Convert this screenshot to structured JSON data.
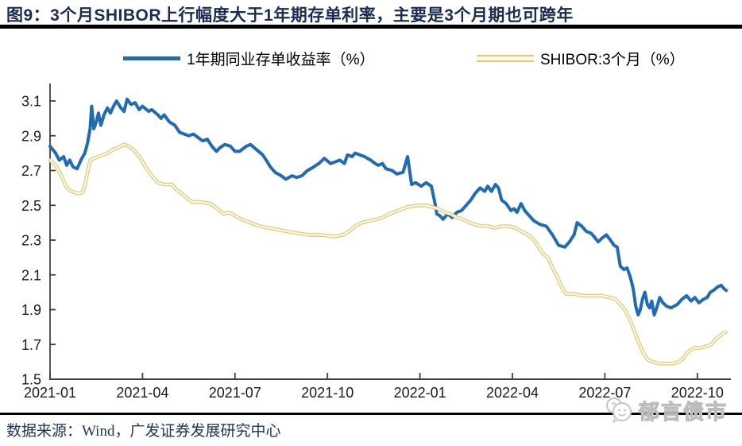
{
  "figure": {
    "title": "图9：3个月SHIBOR上行幅度大于1年期存单利率，主要是3个月期也可跨年",
    "source": "数据来源：Wind，广发证券发展研究中心",
    "watermark": "郁言债市"
  },
  "colors": {
    "ncd_line": "#1f6cb4",
    "shibor_edge": "#dfc878",
    "shibor_fill": "#fcf8e6",
    "title_text": "#1a2c55",
    "source_text": "#20345c",
    "rule": "#000000",
    "axis": "#3f3f3f",
    "tick_label": "#1a1a1a",
    "watermark": "#bdbdbd"
  },
  "chart_data": {
    "type": "line",
    "title": "图9：3个月SHIBOR上行幅度大于1年期存单利率，主要是3个月期也可跨年",
    "xlabel": "",
    "ylabel": "",
    "x_unit": "months since 2021-01",
    "ylim": [
      1.5,
      3.1
    ],
    "grid": false,
    "legend_position": "top-center",
    "yticks": [
      3.1,
      2.9,
      2.7,
      2.5,
      2.3,
      2.1,
      1.9,
      1.7,
      1.5
    ],
    "xticks": [
      {
        "m": 0,
        "label": "2021-01"
      },
      {
        "m": 3,
        "label": "2021-04"
      },
      {
        "m": 6,
        "label": "2021-07"
      },
      {
        "m": 9,
        "label": "2021-10"
      },
      {
        "m": 12,
        "label": "2022-01"
      },
      {
        "m": 15,
        "label": "2022-04"
      },
      {
        "m": 18,
        "label": "2022-07"
      },
      {
        "m": 21,
        "label": "2022-10"
      }
    ],
    "series": [
      {
        "name": "1年期同业存单收益率（%）",
        "color": "#1f6cb4",
        "style": "solid",
        "points": [
          [
            0,
            2.84
          ],
          [
            0.18,
            2.8
          ],
          [
            0.3,
            2.76
          ],
          [
            0.44,
            2.78
          ],
          [
            0.54,
            2.73
          ],
          [
            0.64,
            2.76
          ],
          [
            0.75,
            2.72
          ],
          [
            0.88,
            2.71
          ],
          [
            1,
            2.76
          ],
          [
            1.13,
            2.8
          ],
          [
            1.22,
            2.86
          ],
          [
            1.3,
            2.94
          ],
          [
            1.35,
            3.07
          ],
          [
            1.42,
            2.94
          ],
          [
            1.5,
            2.98
          ],
          [
            1.57,
            3.03
          ],
          [
            1.65,
            2.96
          ],
          [
            1.75,
            3.02
          ],
          [
            1.86,
            3.06
          ],
          [
            1.96,
            3.03
          ],
          [
            2.06,
            3.07
          ],
          [
            2.16,
            3.1
          ],
          [
            2.3,
            3.06
          ],
          [
            2.4,
            3.04
          ],
          [
            2.5,
            3.11
          ],
          [
            2.63,
            3.08
          ],
          [
            2.76,
            3.09
          ],
          [
            2.89,
            3.05
          ],
          [
            3,
            3.07
          ],
          [
            3.2,
            3.04
          ],
          [
            3.3,
            3.05
          ],
          [
            3.5,
            3.02
          ],
          [
            3.6,
            3.0
          ],
          [
            3.7,
            3.02
          ],
          [
            3.87,
            2.98
          ],
          [
            4.05,
            2.96
          ],
          [
            4.2,
            2.92
          ],
          [
            4.35,
            2.91
          ],
          [
            4.5,
            2.9
          ],
          [
            4.65,
            2.91
          ],
          [
            4.8,
            2.89
          ],
          [
            4.95,
            2.87
          ],
          [
            5.1,
            2.88
          ],
          [
            5.25,
            2.84
          ],
          [
            5.4,
            2.81
          ],
          [
            5.5,
            2.83
          ],
          [
            5.67,
            2.85
          ],
          [
            5.85,
            2.84
          ],
          [
            6,
            2.81
          ],
          [
            6.15,
            2.81
          ],
          [
            6.37,
            2.84
          ],
          [
            6.5,
            2.85
          ],
          [
            6.7,
            2.82
          ],
          [
            6.9,
            2.79
          ],
          [
            7.05,
            2.75
          ],
          [
            7.15,
            2.72
          ],
          [
            7.3,
            2.69
          ],
          [
            7.5,
            2.67
          ],
          [
            7.65,
            2.65
          ],
          [
            7.85,
            2.67
          ],
          [
            8,
            2.66
          ],
          [
            8.17,
            2.67
          ],
          [
            8.35,
            2.7
          ],
          [
            8.55,
            2.72
          ],
          [
            8.72,
            2.74
          ],
          [
            8.9,
            2.77
          ],
          [
            9.1,
            2.74
          ],
          [
            9.25,
            2.75
          ],
          [
            9.4,
            2.76
          ],
          [
            9.55,
            2.74
          ],
          [
            9.65,
            2.79
          ],
          [
            9.8,
            2.78
          ],
          [
            9.9,
            2.8
          ],
          [
            10.05,
            2.79
          ],
          [
            10.2,
            2.78
          ],
          [
            10.4,
            2.76
          ],
          [
            10.55,
            2.74
          ],
          [
            10.65,
            2.73
          ],
          [
            10.78,
            2.74
          ],
          [
            10.9,
            2.71
          ],
          [
            11.1,
            2.7
          ],
          [
            11.25,
            2.68
          ],
          [
            11.45,
            2.69
          ],
          [
            11.6,
            2.78
          ],
          [
            11.73,
            2.62
          ],
          [
            11.86,
            2.63
          ],
          [
            12.04,
            2.61
          ],
          [
            12.2,
            2.63
          ],
          [
            12.37,
            2.61
          ],
          [
            12.48,
            2.52
          ],
          [
            12.55,
            2.45
          ],
          [
            12.65,
            2.44
          ],
          [
            12.75,
            2.42
          ],
          [
            12.9,
            2.45
          ],
          [
            13.05,
            2.43
          ],
          [
            13.2,
            2.46
          ],
          [
            13.35,
            2.47
          ],
          [
            13.5,
            2.5
          ],
          [
            13.65,
            2.53
          ],
          [
            13.8,
            2.57
          ],
          [
            13.95,
            2.6
          ],
          [
            14.1,
            2.58
          ],
          [
            14.2,
            2.61
          ],
          [
            14.32,
            2.58
          ],
          [
            14.45,
            2.62
          ],
          [
            14.55,
            2.6
          ],
          [
            14.65,
            2.53
          ],
          [
            14.8,
            2.51
          ],
          [
            14.95,
            2.47
          ],
          [
            15.05,
            2.48
          ],
          [
            15.15,
            2.46
          ],
          [
            15.28,
            2.51
          ],
          [
            15.4,
            2.47
          ],
          [
            15.55,
            2.44
          ],
          [
            15.7,
            2.41
          ],
          [
            15.9,
            2.39
          ],
          [
            16.1,
            2.38
          ],
          [
            16.3,
            2.33
          ],
          [
            16.5,
            2.27
          ],
          [
            16.7,
            2.26
          ],
          [
            16.85,
            2.29
          ],
          [
            17,
            2.33
          ],
          [
            17.1,
            2.4
          ],
          [
            17.25,
            2.38
          ],
          [
            17.4,
            2.35
          ],
          [
            17.55,
            2.34
          ],
          [
            17.65,
            2.32
          ],
          [
            17.78,
            2.29
          ],
          [
            17.9,
            2.31
          ],
          [
            18.05,
            2.33
          ],
          [
            18.18,
            2.3
          ],
          [
            18.3,
            2.27
          ],
          [
            18.4,
            2.26
          ],
          [
            18.5,
            2.15
          ],
          [
            18.62,
            2.13
          ],
          [
            18.72,
            2.14
          ],
          [
            18.82,
            2.09
          ],
          [
            18.92,
            2.02
          ],
          [
            19,
            1.92
          ],
          [
            19.08,
            1.87
          ],
          [
            19.15,
            1.9
          ],
          [
            19.22,
            1.96
          ],
          [
            19.3,
            2.0
          ],
          [
            19.38,
            1.93
          ],
          [
            19.45,
            1.91
          ],
          [
            19.52,
            1.95
          ],
          [
            19.6,
            1.87
          ],
          [
            19.68,
            1.91
          ],
          [
            19.78,
            1.97
          ],
          [
            19.88,
            1.94
          ],
          [
            20,
            1.92
          ],
          [
            20.15,
            1.91
          ],
          [
            20.35,
            1.93
          ],
          [
            20.5,
            1.96
          ],
          [
            20.65,
            1.98
          ],
          [
            20.8,
            1.95
          ],
          [
            20.92,
            1.97
          ],
          [
            21.05,
            1.94
          ],
          [
            21.2,
            1.96
          ],
          [
            21.32,
            1.97
          ],
          [
            21.42,
            2.0
          ],
          [
            21.52,
            2.01
          ],
          [
            21.65,
            2.03
          ],
          [
            21.77,
            2.04
          ],
          [
            21.87,
            2.02
          ],
          [
            21.94,
            2.01
          ]
        ]
      },
      {
        "name": "SHIBOR:3个月（%）",
        "color": "#dfc878",
        "style": "outlined",
        "points": [
          [
            0,
            2.76
          ],
          [
            0.18,
            2.73
          ],
          [
            0.34,
            2.68
          ],
          [
            0.49,
            2.62
          ],
          [
            0.6,
            2.59
          ],
          [
            0.7,
            2.58
          ],
          [
            0.85,
            2.57
          ],
          [
            1,
            2.57
          ],
          [
            1.08,
            2.58
          ],
          [
            1.16,
            2.64
          ],
          [
            1.24,
            2.71
          ],
          [
            1.31,
            2.76
          ],
          [
            1.42,
            2.77
          ],
          [
            1.57,
            2.78
          ],
          [
            1.73,
            2.79
          ],
          [
            1.88,
            2.8
          ],
          [
            2.03,
            2.82
          ],
          [
            2.19,
            2.83
          ],
          [
            2.3,
            2.84
          ],
          [
            2.4,
            2.85
          ],
          [
            2.55,
            2.84
          ],
          [
            2.7,
            2.82
          ],
          [
            2.9,
            2.78
          ],
          [
            3.1,
            2.72
          ],
          [
            3.3,
            2.67
          ],
          [
            3.5,
            2.63
          ],
          [
            3.7,
            2.62
          ],
          [
            3.95,
            2.62
          ],
          [
            4.1,
            2.59
          ],
          [
            4.25,
            2.57
          ],
          [
            4.45,
            2.54
          ],
          [
            4.6,
            2.52
          ],
          [
            4.9,
            2.52
          ],
          [
            5.2,
            2.51
          ],
          [
            5.35,
            2.49
          ],
          [
            5.5,
            2.47
          ],
          [
            5.65,
            2.45
          ],
          [
            5.8,
            2.46
          ],
          [
            6,
            2.44
          ],
          [
            6.2,
            2.42
          ],
          [
            6.5,
            2.4
          ],
          [
            6.8,
            2.38
          ],
          [
            7.1,
            2.37
          ],
          [
            7.4,
            2.36
          ],
          [
            7.7,
            2.35
          ],
          [
            8,
            2.34
          ],
          [
            8.4,
            2.33
          ],
          [
            8.8,
            2.33
          ],
          [
            9.2,
            2.32
          ],
          [
            9.5,
            2.33
          ],
          [
            9.7,
            2.35
          ],
          [
            9.9,
            2.38
          ],
          [
            10.1,
            2.4
          ],
          [
            10.35,
            2.41
          ],
          [
            10.6,
            2.42
          ],
          [
            10.8,
            2.43
          ],
          [
            11,
            2.45
          ],
          [
            11.3,
            2.47
          ],
          [
            11.6,
            2.49
          ],
          [
            11.9,
            2.5
          ],
          [
            12.2,
            2.5
          ],
          [
            12.4,
            2.49
          ],
          [
            12.6,
            2.48
          ],
          [
            12.8,
            2.46
          ],
          [
            13,
            2.45
          ],
          [
            13.2,
            2.43
          ],
          [
            13.4,
            2.42
          ],
          [
            13.6,
            2.4
          ],
          [
            13.8,
            2.39
          ],
          [
            14,
            2.38
          ],
          [
            14.2,
            2.38
          ],
          [
            14.45,
            2.37
          ],
          [
            14.65,
            2.38
          ],
          [
            14.9,
            2.38
          ],
          [
            15.1,
            2.37
          ],
          [
            15.3,
            2.35
          ],
          [
            15.5,
            2.33
          ],
          [
            15.7,
            2.3
          ],
          [
            15.85,
            2.26
          ],
          [
            16,
            2.22
          ],
          [
            16.15,
            2.2
          ],
          [
            16.3,
            2.14
          ],
          [
            16.45,
            2.09
          ],
          [
            16.6,
            2.03
          ],
          [
            16.75,
            1.99
          ],
          [
            17,
            1.99
          ],
          [
            17.3,
            1.98
          ],
          [
            17.6,
            1.98
          ],
          [
            17.9,
            1.98
          ],
          [
            18.15,
            1.97
          ],
          [
            18.35,
            1.96
          ],
          [
            18.5,
            1.93
          ],
          [
            18.65,
            1.9
          ],
          [
            18.8,
            1.85
          ],
          [
            18.95,
            1.78
          ],
          [
            19.1,
            1.71
          ],
          [
            19.25,
            1.65
          ],
          [
            19.4,
            1.61
          ],
          [
            19.55,
            1.6
          ],
          [
            19.75,
            1.59
          ],
          [
            20,
            1.59
          ],
          [
            20.2,
            1.59
          ],
          [
            20.4,
            1.6
          ],
          [
            20.55,
            1.62
          ],
          [
            20.65,
            1.65
          ],
          [
            20.78,
            1.67
          ],
          [
            20.9,
            1.68
          ],
          [
            21.1,
            1.68
          ],
          [
            21.3,
            1.69
          ],
          [
            21.45,
            1.7
          ],
          [
            21.6,
            1.73
          ],
          [
            21.8,
            1.76
          ],
          [
            21.92,
            1.77
          ]
        ]
      }
    ]
  }
}
